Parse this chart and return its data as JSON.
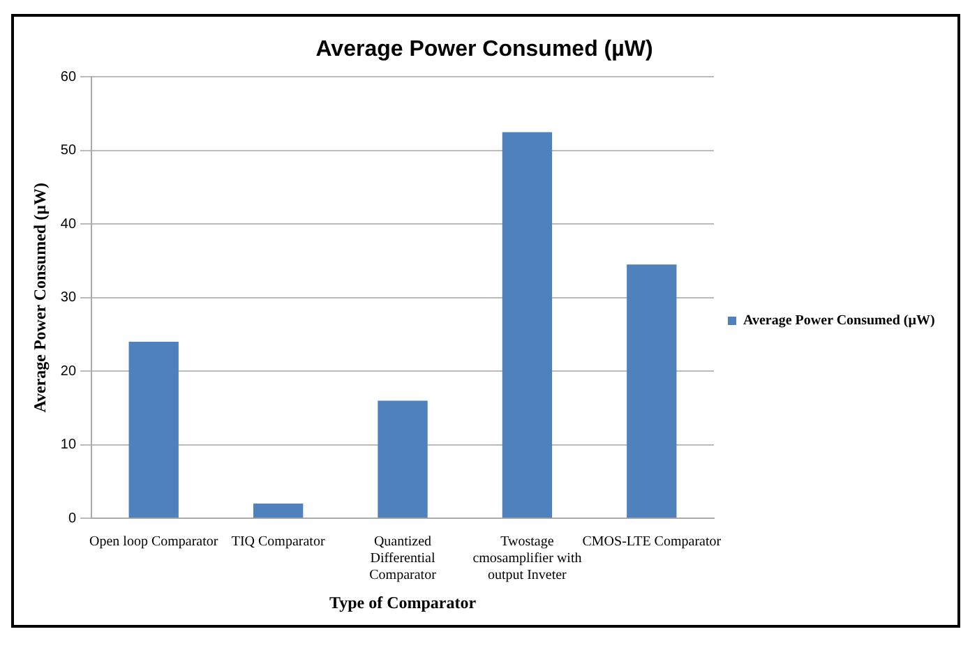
{
  "chart_data": {
    "type": "bar",
    "title": "Average Power Consumed (µW)",
    "xlabel": "Type of Comparator",
    "ylabel": "Average Power Consumed (µW)",
    "categories": [
      "Open loop Comparator",
      "TIQ Comparator",
      "Quantized Differential Comparator",
      "Twostage cmosamplifier with output Inveter",
      "CMOS-LTE Comparator"
    ],
    "series": [
      {
        "name": "Average Power Consumed (µW)",
        "color": "#4f81bd",
        "values": [
          24,
          2,
          16,
          52.5,
          34.5
        ]
      }
    ],
    "ylim": [
      0,
      60
    ],
    "yticks": [
      0,
      10,
      20,
      30,
      40,
      50,
      60
    ],
    "grid": "y",
    "legend": "right"
  }
}
